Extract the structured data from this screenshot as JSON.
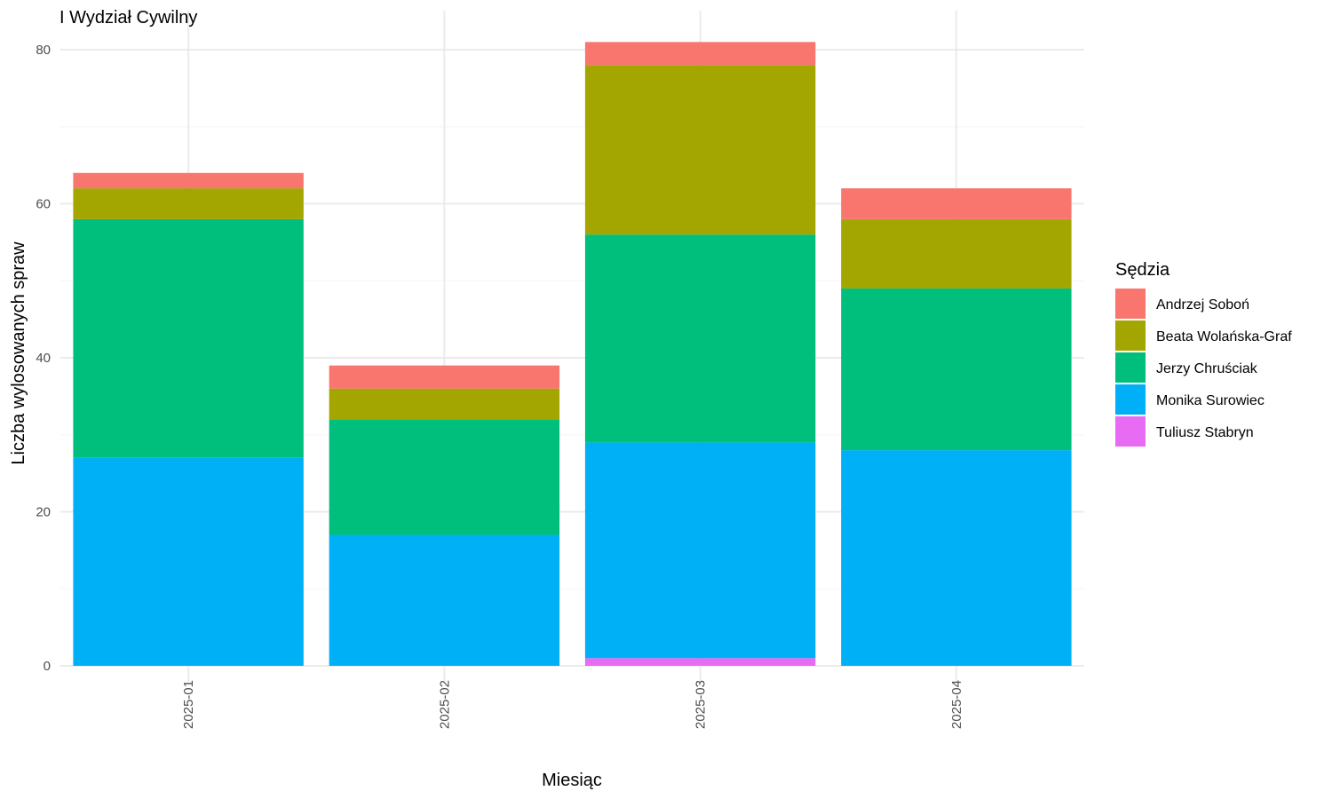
{
  "chart_data": {
    "type": "bar",
    "stacked": true,
    "title": "I Wydział Cywilny",
    "xlabel": "Miesiąc",
    "ylabel": "Liczba wylosowanych spraw",
    "categories": [
      "2025-01",
      "2025-02",
      "2025-03",
      "2025-04"
    ],
    "ylim": [
      0,
      82
    ],
    "yticks": [
      0,
      20,
      40,
      60,
      80
    ],
    "grid": true,
    "legend_title": "Sędzia",
    "legend_position": "right",
    "stack_order_bottom_to_top": [
      "Tuliusz Stabryn",
      "Monika Surowiec",
      "Jerzy Chruściak",
      "Beata Wolańska-Graf",
      "Andrzej Soboń"
    ],
    "series": [
      {
        "name": "Andrzej Soboń",
        "color": "#F8766D",
        "values": [
          2,
          3,
          3,
          4
        ]
      },
      {
        "name": "Beata Wolańska-Graf",
        "color": "#A3A500",
        "values": [
          4,
          4,
          22,
          9
        ]
      },
      {
        "name": "Jerzy Chruściak",
        "color": "#00BF7D",
        "values": [
          31,
          15,
          27,
          21
        ]
      },
      {
        "name": "Monika Surowiec",
        "color": "#00B0F6",
        "values": [
          27,
          17,
          28,
          28
        ]
      },
      {
        "name": "Tuliusz Stabryn",
        "color": "#E76BF3",
        "values": [
          0,
          0,
          1,
          0
        ]
      }
    ]
  }
}
